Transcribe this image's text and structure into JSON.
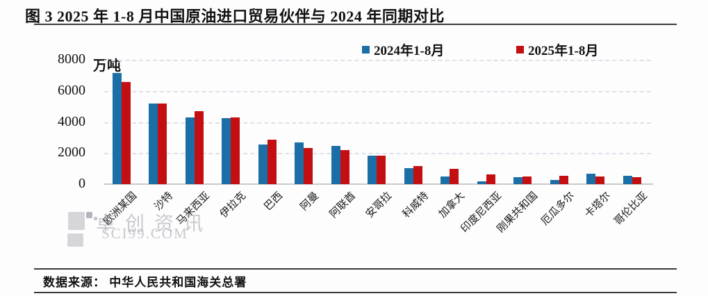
{
  "title": "图 3  2025 年 1-8 月中国原油进口贸易伙伴与 2024 年同期对比",
  "legend": {
    "items": [
      {
        "label": "2024年1-8月",
        "color": "#1c6ea6"
      },
      {
        "label": "2025年1-8月",
        "color": "#c40f12"
      }
    ]
  },
  "y_axis": {
    "unit": "万吨",
    "ticks": [
      0,
      2000,
      4000,
      6000,
      8000
    ]
  },
  "watermark": {
    "text": "卓创资讯",
    "url": "SCI99.COM"
  },
  "footer": {
    "source": "数据来源： 中华人民共和国海关总署"
  },
  "chart_data": {
    "type": "bar",
    "title": "图 3 2025 年 1-8 月中国原油进口贸易伙伴与 2024 年同期对比",
    "ylabel": "万吨",
    "ylim": [
      0,
      8000
    ],
    "ytick_interval": 2000,
    "grid": "horizontal-dashed",
    "legend_position": "top",
    "categories": [
      "欧洲某国",
      "沙特",
      "马来西亚",
      "伊拉克",
      "巴西",
      "阿曼",
      "阿联酋",
      "安哥拉",
      "科威特",
      "加拿大",
      "印度尼西亚",
      "刚果共和国",
      "厄瓜多尔",
      "卡塔尔",
      "哥伦比亚"
    ],
    "series": [
      {
        "name": "2024年1-8月",
        "color": "#1c6ea6",
        "values": [
          7130,
          5200,
          4300,
          4240,
          2540,
          2670,
          2450,
          1850,
          1030,
          500,
          180,
          430,
          280,
          670,
          540
        ]
      },
      {
        "name": "2025年1-8月",
        "color": "#c40f12",
        "values": [
          6560,
          5200,
          4700,
          4310,
          2880,
          2340,
          2180,
          1850,
          1170,
          970,
          620,
          510,
          520,
          490,
          450
        ]
      }
    ]
  }
}
